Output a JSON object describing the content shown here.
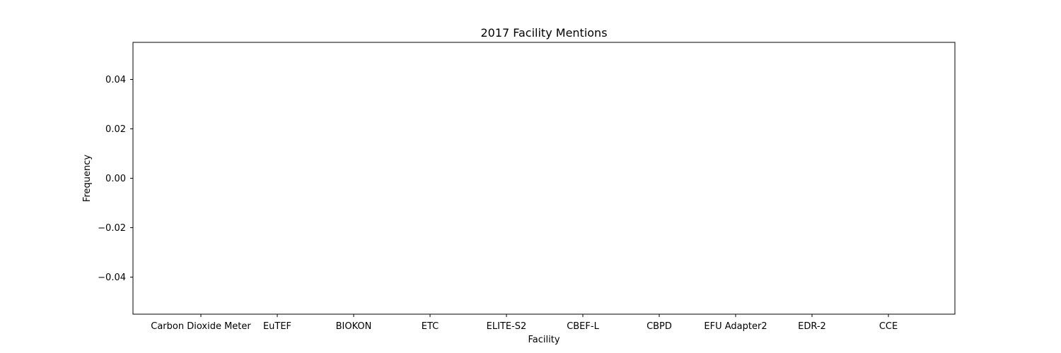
{
  "chart_data": {
    "type": "bar",
    "title": "2017 Facility Mentions",
    "xlabel": "Facility",
    "ylabel": "Frequency",
    "categories": [
      "Carbon Dioxide Meter",
      "EuTEF",
      "BIOKON",
      "ETC",
      "ELITE-S2",
      "CBEF-L",
      "CBPD",
      "EFU Adapter2",
      "EDR-2",
      "CCE"
    ],
    "values": [
      0,
      0,
      0,
      0,
      0,
      0,
      0,
      0,
      0,
      0
    ],
    "ylim": [
      -0.055,
      0.055
    ],
    "yticks": [
      "0.04",
      "0.02",
      "0.00",
      "−0.02",
      "−0.04"
    ],
    "ytick_values": [
      0.04,
      0.02,
      0.0,
      -0.02,
      -0.04
    ],
    "grid": false,
    "bar_color": "#1f77b4"
  }
}
